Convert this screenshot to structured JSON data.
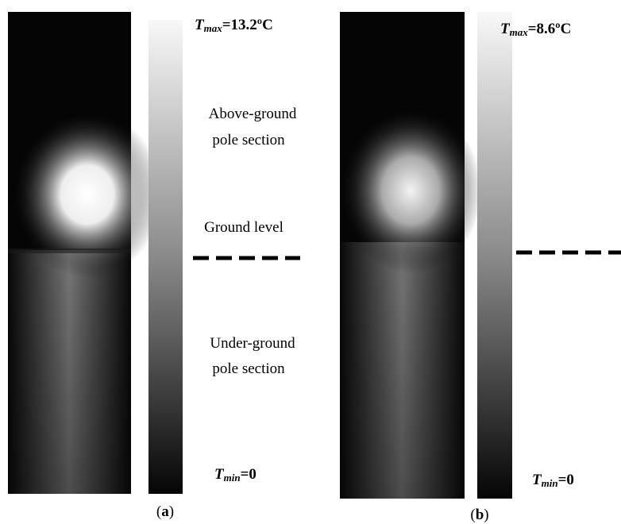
{
  "panels": [
    {
      "tmax": {
        "symbol": "T",
        "sub": "max",
        "rest": "=13.2ºC"
      },
      "annotations": {
        "above": [
          "Above-ground",
          "pole section"
        ],
        "ground": "Ground level",
        "under": [
          "Under-ground",
          "pole section"
        ]
      },
      "tmin": {
        "symbol": "T",
        "sub": "min",
        "rest": "=0"
      },
      "label": {
        "open": "(",
        "letter": "a",
        "close": ")"
      }
    },
    {
      "tmax": {
        "symbol": "T",
        "sub": "max",
        "rest": "=8.6ºC"
      },
      "tmin": {
        "symbol": "T",
        "sub": "min",
        "rest": "=0"
      },
      "label": {
        "open": "(",
        "letter": "b",
        "close": ")"
      }
    }
  ]
}
